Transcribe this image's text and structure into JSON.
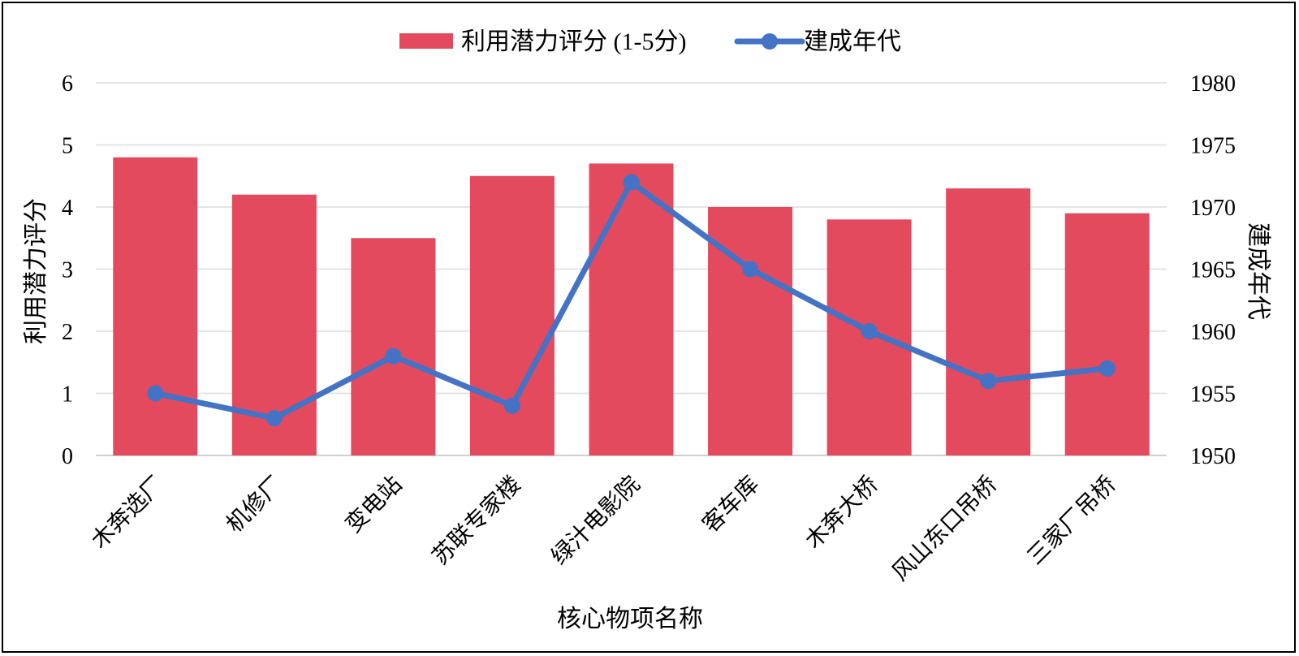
{
  "chart_data": {
    "type": "bar",
    "categories": [
      "木奔选厂",
      "机修厂",
      "变电站",
      "苏联专家楼",
      "绿汁电影院",
      "客车库",
      "木奔大桥",
      "风山东口吊桥",
      "三家厂吊桥"
    ],
    "series": [
      {
        "name": "利用潜力评分 (1-5分)",
        "type": "bar",
        "axis": "left",
        "color": "#e34a5e",
        "values": [
          4.8,
          4.2,
          3.5,
          4.5,
          4.7,
          4.0,
          3.8,
          4.3,
          3.9
        ]
      },
      {
        "name": "建成年代",
        "type": "line",
        "axis": "right",
        "color": "#4472c4",
        "values": [
          1955,
          1953,
          1958,
          1954,
          1972,
          1965,
          1960,
          1956,
          1957
        ]
      }
    ],
    "xlabel": "核心物项名称",
    "ylabel": "利用潜力评分",
    "y2label": "建成年代",
    "ylim": [
      0,
      6
    ],
    "y2lim": [
      1950,
      1980
    ],
    "yticks": [
      "0",
      "1",
      "2",
      "3",
      "4",
      "5",
      "6"
    ],
    "y2ticks": [
      "1950",
      "1955",
      "1960",
      "1965",
      "1970",
      "1975",
      "1980"
    ],
    "grid": true,
    "legend": "top-center"
  }
}
